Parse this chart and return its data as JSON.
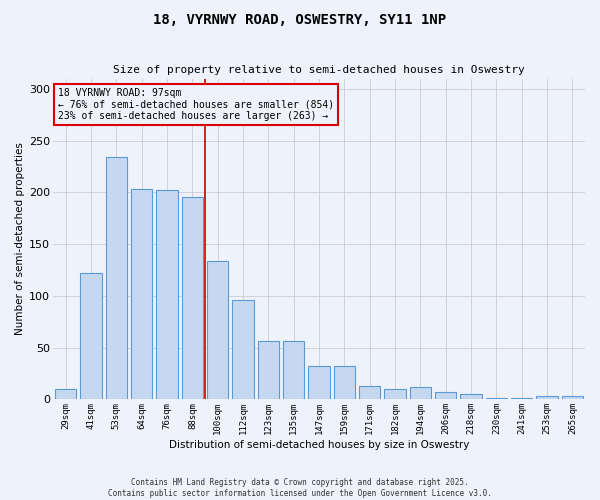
{
  "title_line1": "18, VYRNWY ROAD, OSWESTRY, SY11 1NP",
  "title_line2": "Size of property relative to semi-detached houses in Oswestry",
  "xlabel": "Distribution of semi-detached houses by size in Oswestry",
  "ylabel": "Number of semi-detached properties",
  "categories": [
    "29sqm",
    "41sqm",
    "53sqm",
    "64sqm",
    "76sqm",
    "88sqm",
    "100sqm",
    "112sqm",
    "123sqm",
    "135sqm",
    "147sqm",
    "159sqm",
    "171sqm",
    "182sqm",
    "194sqm",
    "206sqm",
    "218sqm",
    "230sqm",
    "241sqm",
    "253sqm",
    "265sqm"
  ],
  "values": [
    10,
    122,
    234,
    203,
    202,
    196,
    134,
    96,
    56,
    56,
    32,
    32,
    13,
    10,
    12,
    7,
    5,
    1,
    1,
    3,
    3
  ],
  "bar_color": "#c5d8f0",
  "bar_edge_color": "#5b9bd5",
  "subject_sqm": 97,
  "subject_label": "18 VYRNWY ROAD: 97sqm",
  "pct_smaller": 76,
  "pct_smaller_n": 854,
  "pct_larger": 23,
  "pct_larger_n": 263,
  "annotation_box_color": "#dd0000",
  "vline_color": "#cc0000",
  "ylim": [
    0,
    310
  ],
  "yticks": [
    0,
    50,
    100,
    150,
    200,
    250,
    300
  ],
  "grid_color": "#cccccc",
  "background_color": "#eef2fb",
  "footer_line1": "Contains HM Land Registry data © Crown copyright and database right 2025.",
  "footer_line2": "Contains public sector information licensed under the Open Government Licence v3.0."
}
